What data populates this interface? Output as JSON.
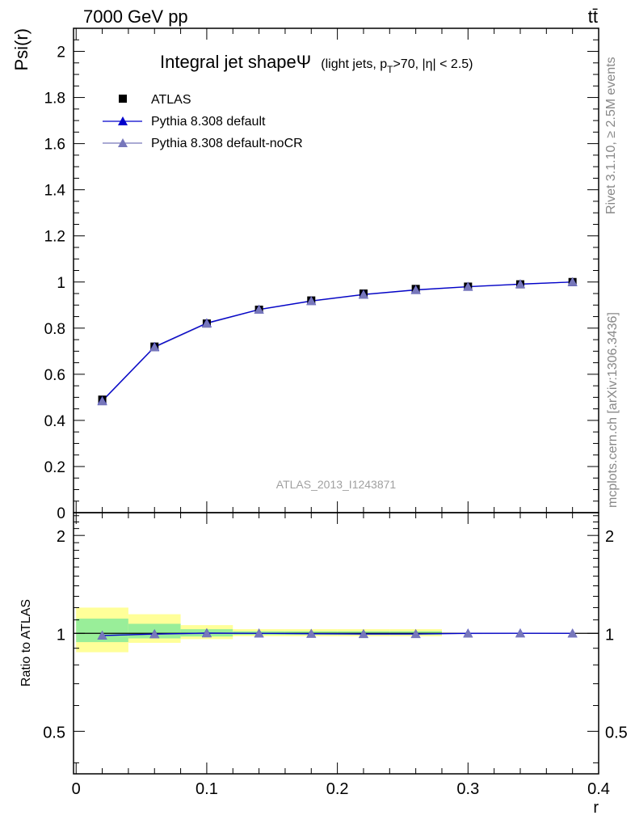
{
  "header": {
    "left": "7000 GeV pp",
    "right": "tt̄"
  },
  "side_text": {
    "version": "Rivet 3.1.10, ≥ 2.5M events",
    "source": "mcplots.cern.ch [arXiv:1306.3436]"
  },
  "chart_data": [
    {
      "type": "line",
      "title": "Integral jet shapeΨ",
      "subtitle_prefix": "(light jets, p",
      "subtitle_sub": "T",
      "subtitle_suffix": ">70, |η| < 2.5)",
      "ylabel": "Psi(r)",
      "xlabel": "",
      "analysis_label": "ATLAS_2013_I1243871",
      "xlim": [
        -0.002,
        0.4
      ],
      "ylim": [
        0,
        2.1
      ],
      "yticks": [
        0,
        0.2,
        0.4,
        0.6,
        0.8,
        1,
        1.2,
        1.4,
        1.6,
        1.8,
        2
      ],
      "ytick_labels": [
        "0",
        "0.2",
        "0.4",
        "0.6",
        "0.8",
        "1",
        "1.2",
        "1.4",
        "1.6",
        "1.8",
        "2"
      ],
      "legend_position": "top-left",
      "x": [
        0.02,
        0.06,
        0.1,
        0.14,
        0.18,
        0.22,
        0.26,
        0.3,
        0.34,
        0.38
      ],
      "series": [
        {
          "name": "ATLAS",
          "marker": "square",
          "color": "#000000",
          "values": [
            0.49,
            0.72,
            0.82,
            0.88,
            0.92,
            0.95,
            0.97,
            0.98,
            0.99,
            1.0
          ]
        },
        {
          "name": "Pythia 8.308 default",
          "marker": "triangle",
          "color": "#0000cc",
          "values": [
            0.485,
            0.719,
            0.822,
            0.881,
            0.918,
            0.946,
            0.966,
            0.98,
            0.991,
            1.0
          ]
        },
        {
          "name": "Pythia 8.308 default-noCR",
          "marker": "triangle",
          "color": "#7777bb",
          "values": [
            0.483,
            0.717,
            0.82,
            0.88,
            0.917,
            0.945,
            0.965,
            0.979,
            0.99,
            1.0
          ]
        }
      ]
    },
    {
      "type": "line",
      "ylabel": "Ratio to ATLAS",
      "xlabel": "r",
      "xlim": [
        -0.002,
        0.4
      ],
      "ylim": [
        0.37,
        2.35
      ],
      "yscale": "log",
      "yticks": [
        0.5,
        1,
        2
      ],
      "ytick_labels": [
        "0.5",
        "1",
        "2"
      ],
      "xticks": [
        0,
        0.1,
        0.2,
        0.3,
        0.4
      ],
      "xtick_labels": [
        "0",
        "0.1",
        "0.2",
        "0.3",
        "0.4"
      ],
      "uncertainty_bands": [
        {
          "x0": 0.0,
          "x1": 0.04,
          "yellow": [
            0.875,
            1.2
          ],
          "green": [
            0.94,
            1.11
          ]
        },
        {
          "x0": 0.04,
          "x1": 0.08,
          "yellow": [
            0.935,
            1.145
          ],
          "green": [
            0.965,
            1.07
          ]
        },
        {
          "x0": 0.08,
          "x1": 0.12,
          "yellow": [
            0.96,
            1.06
          ],
          "green": [
            0.978,
            1.03
          ]
        },
        {
          "x0": 0.12,
          "x1": 0.16,
          "yellow": [
            0.98,
            1.03
          ],
          "green": [
            0.99,
            1.015
          ]
        },
        {
          "x0": 0.16,
          "x1": 0.2,
          "yellow": [
            0.98,
            1.03
          ],
          "green": [
            0.99,
            1.015
          ]
        },
        {
          "x0": 0.2,
          "x1": 0.24,
          "yellow": [
            0.98,
            1.03
          ],
          "green": [
            0.99,
            1.015
          ]
        },
        {
          "x0": 0.24,
          "x1": 0.28,
          "yellow": [
            0.98,
            1.03
          ],
          "green": [
            0.99,
            1.015
          ]
        }
      ],
      "bands_colors": {
        "yellow": "#ffff99",
        "green": "#99ee99"
      },
      "x": [
        0.02,
        0.06,
        0.1,
        0.14,
        0.18,
        0.22,
        0.26,
        0.3,
        0.34,
        0.38
      ],
      "series": [
        {
          "name": "Pythia 8.308 default",
          "color": "#0000cc",
          "values": [
            0.985,
            0.995,
            1.002,
            1.0,
            0.998,
            0.996,
            0.996,
            1.0,
            1.001,
            1.0
          ]
        },
        {
          "name": "Pythia 8.308 default-noCR",
          "color": "#7777bb",
          "values": [
            0.985,
            0.994,
            1.0,
            1.0,
            0.997,
            0.995,
            0.995,
            0.999,
            1.0,
            1.0
          ]
        }
      ]
    }
  ]
}
